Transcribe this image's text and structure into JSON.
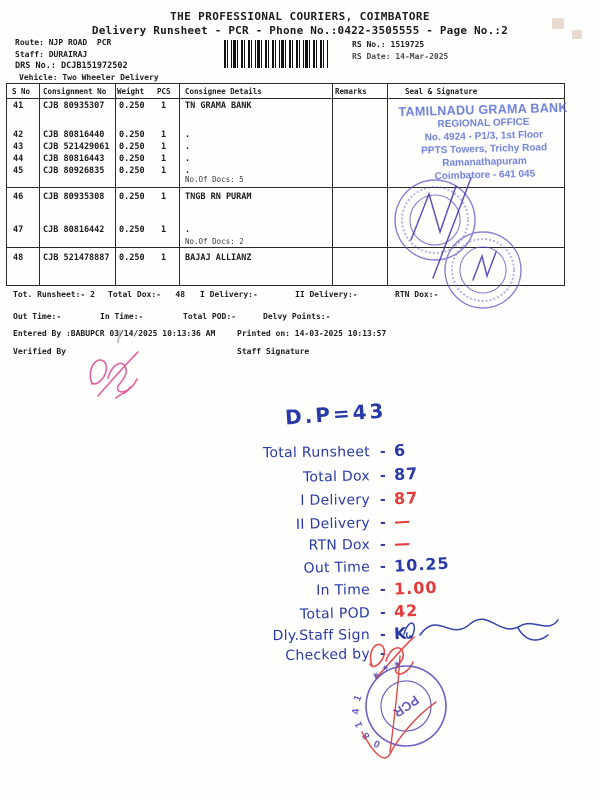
{
  "header": {
    "title": "THE PROFESSIONAL COURIERS, COIMBATORE",
    "subtitle": "Delivery Runsheet - PCR - Phone No.:0422-3505555 - Page No.:2",
    "route": "Route: NJP ROAD  PCR",
    "staff": "Staff: DURAIRAJ",
    "drs_no": "DRS No.: DCJB151972502",
    "vehicle": "Vehicle: Two Wheeler Delivery",
    "rs_no": "RS No.: 1519725",
    "rs_date": "RS Date: 14-Mar-2025"
  },
  "table": {
    "headers": {
      "sno": "S No",
      "consignment": "Consignment No",
      "weight": "Weight",
      "pcs": "PCS",
      "consignee": "Consignee Details",
      "remarks": "Remarks",
      "seal": "Seal & Signature"
    },
    "groups": [
      {
        "rows": [
          {
            "sno": "41",
            "consignment": "CJB 80935307",
            "weight": "0.250",
            "pcs": "1",
            "consignee": "TN GRAMA BANK"
          },
          {
            "sno": "42",
            "consignment": "CJB 80816440",
            "weight": "0.250",
            "pcs": "1",
            "consignee": "."
          },
          {
            "sno": "43",
            "consignment": "CJB 521429061",
            "weight": "0.250",
            "pcs": "1",
            "consignee": "."
          },
          {
            "sno": "44",
            "consignment": "CJB 80816443",
            "weight": "0.250",
            "pcs": "1",
            "consignee": "."
          },
          {
            "sno": "45",
            "consignment": "CJB 80926835",
            "weight": "0.250",
            "pcs": "1",
            "consignee": "."
          }
        ],
        "note": "No.Of Docs: 5"
      },
      {
        "rows": [
          {
            "sno": "46",
            "consignment": "CJB 80935308",
            "weight": "0.250",
            "pcs": "1",
            "consignee": "TNGB RN PURAM"
          },
          {
            "sno": "47",
            "consignment": "CJB 80816442",
            "weight": "0.250",
            "pcs": "1",
            "consignee": "."
          }
        ],
        "note": "No.Of Docs: 2"
      },
      {
        "rows": [
          {
            "sno": "48",
            "consignment": "CJB 521478887",
            "weight": "0.250",
            "pcs": "1",
            "consignee": "BAJAJ ALLIANZ"
          }
        ],
        "note": ""
      }
    ]
  },
  "summary": {
    "line1": [
      "Tot. Runsheet:- 2",
      "Total Dox:-   48",
      "I Delivery:-",
      "II Delivery:-",
      "RTN Dox:-"
    ],
    "line2": [
      "Out Time:-",
      "In Time:-",
      "Total POD:-",
      "Delvy Points:-"
    ],
    "line3": [
      "Entered By :BABUPCR 03/14/2025 10:13:36 AM",
      "Printed on: 14-03-2025 10:13:57"
    ],
    "line4": [
      "Verified By",
      "Staff Signature"
    ]
  },
  "stamps": {
    "tngb": {
      "lines": [
        "TAMILNADU GRAMA BANK",
        "REGIONAL OFFICE",
        "No. 4924 - P1/3, 1st Floor",
        "PPTS Towers, Trichy Road",
        "Ramanathapuram",
        "Coimbatore - 641 045"
      ],
      "color": "#5b6fd6"
    },
    "pcr": {
      "center": "PCR",
      "ring": "0 8 1 4 1",
      "color": "#4a3fb5"
    }
  },
  "handwritten": {
    "dp": "D.P=43",
    "rows": [
      {
        "label": "Total Runsheet",
        "value": "6",
        "ink": "blue"
      },
      {
        "label": "Total Dox",
        "value": "87",
        "ink": "blue"
      },
      {
        "label": "I Delivery",
        "value": "87",
        "ink": "red"
      },
      {
        "label": "II Delivery",
        "value": "—",
        "ink": "red"
      },
      {
        "label": "RTN Dox",
        "value": "—",
        "ink": "red"
      },
      {
        "label": "Out Time",
        "value": "10.25",
        "ink": "blue"
      },
      {
        "label": "In Time",
        "value": "1.00",
        "ink": "red"
      },
      {
        "label": "Total POD",
        "value": "42",
        "ink": "red"
      },
      {
        "label": "Dly.Staff Sign",
        "value": "K.",
        "ink": "blue"
      },
      {
        "label": "Checked by",
        "value": "",
        "ink": "red"
      }
    ],
    "ink_blue": "#2839a8",
    "ink_red": "#e23b3b",
    "signature_pink": "#e0559a"
  }
}
